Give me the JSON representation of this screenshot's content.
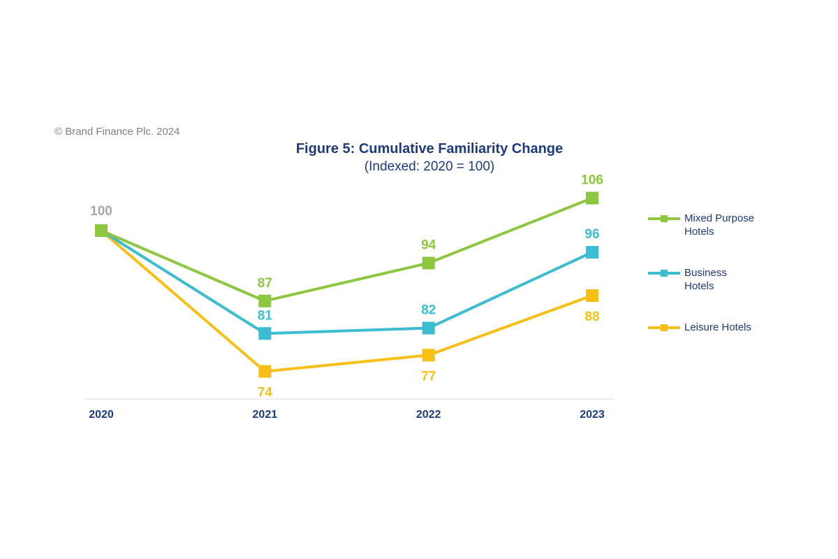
{
  "copyright": "© Brand Finance Plc. 2024",
  "chart_data": {
    "type": "line",
    "title": "Figure 5: Cumulative Familiarity Change",
    "subtitle": "(Indexed: 2020 = 100)",
    "x": [
      "2020",
      "2021",
      "2022",
      "2023"
    ],
    "ylim": [
      68,
      112
    ],
    "grid": false,
    "legend": "right",
    "first_point_label": "100",
    "series": [
      {
        "name": "Mixed Purpose Hotels",
        "color": "#8dc63f",
        "values": [
          100,
          87,
          94,
          106
        ],
        "labels": [
          "",
          "87",
          "94",
          "106"
        ],
        "label_pos": [
          "above",
          "above",
          "above",
          "above"
        ]
      },
      {
        "name": "Business Hotels",
        "color": "#3bbcd0",
        "values": [
          100,
          81,
          82,
          96
        ],
        "labels": [
          "",
          "81",
          "82",
          "96"
        ],
        "label_pos": [
          "above",
          "above",
          "above",
          "above"
        ]
      },
      {
        "name": "Leisure Hotels",
        "color": "#f8bf16",
        "values": [
          100,
          74,
          77,
          88
        ],
        "labels": [
          "",
          "74",
          "77",
          "88"
        ],
        "label_pos": [
          "below",
          "below",
          "below",
          "below"
        ]
      }
    ]
  },
  "legend_items": [
    {
      "label_lines": [
        "Mixed Purpose",
        "Hotels"
      ]
    },
    {
      "label_lines": [
        "Business",
        "Hotels"
      ]
    },
    {
      "label_lines": [
        "Leisure Hotels"
      ]
    }
  ]
}
